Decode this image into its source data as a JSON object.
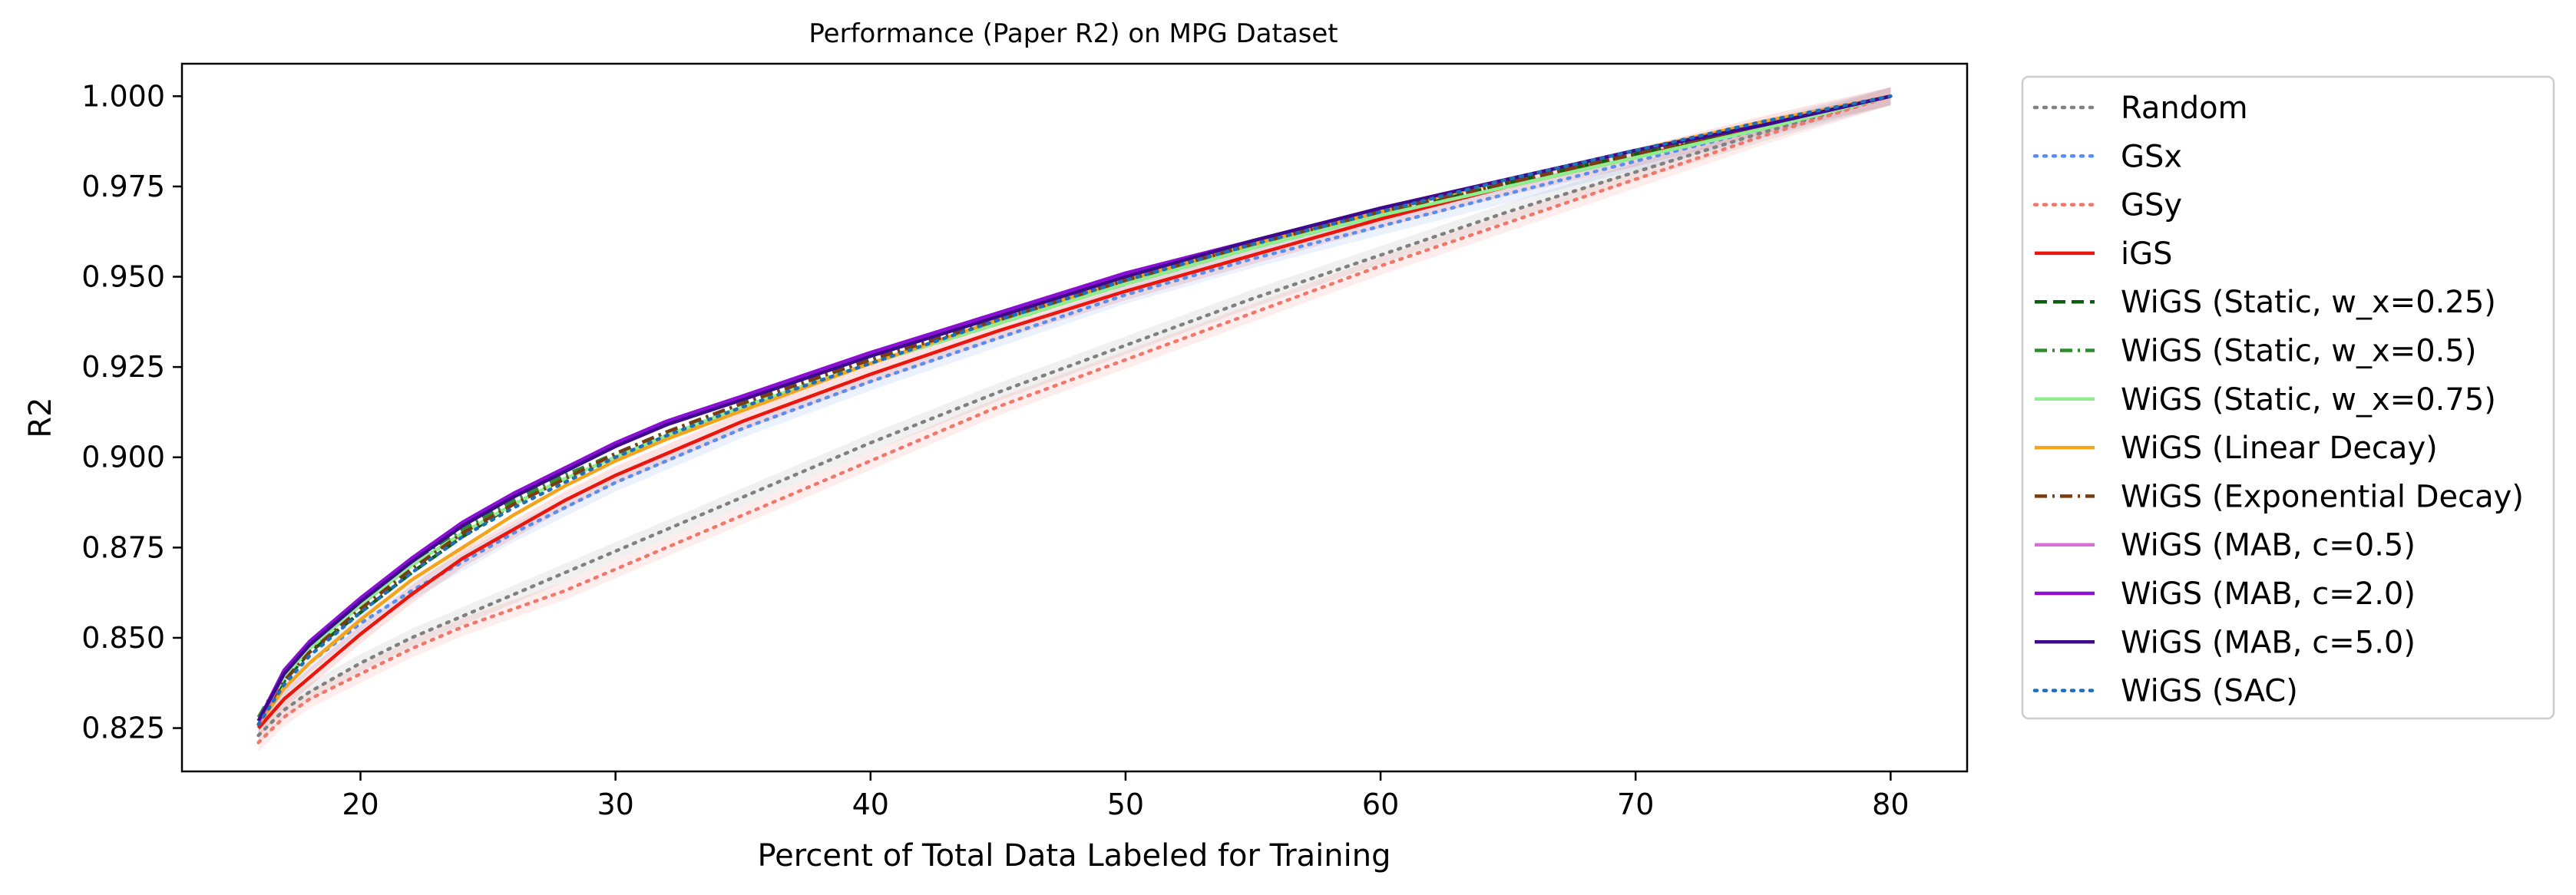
{
  "chart_data": {
    "type": "line",
    "title": "Performance (Paper R2) on MPG Dataset",
    "xlabel": "Percent of Total Data Labeled for Training",
    "ylabel": "R2",
    "xlim": [
      13,
      83
    ],
    "ylim": [
      0.813,
      1.009
    ],
    "xticks": [
      20,
      30,
      40,
      50,
      60,
      70,
      80
    ],
    "yticks": [
      0.825,
      0.85,
      0.875,
      0.9,
      0.925,
      0.95,
      0.975,
      1.0
    ],
    "ytick_labels": [
      "0.825",
      "0.850",
      "0.875",
      "0.900",
      "0.925",
      "0.950",
      "0.975",
      "1.000"
    ],
    "grid": false,
    "legend_position": "outside-right",
    "x": [
      16,
      17,
      18,
      20,
      22,
      24,
      26,
      28,
      30,
      32,
      35,
      40,
      45,
      50,
      55,
      60,
      65,
      70,
      75,
      80
    ],
    "series": [
      {
        "name": "Random",
        "color": "#808080",
        "dash": "dotted",
        "band": true,
        "values": [
          0.823,
          0.83,
          0.835,
          0.843,
          0.85,
          0.856,
          0.862,
          0.868,
          0.874,
          0.88,
          0.889,
          0.904,
          0.918,
          0.931,
          0.944,
          0.956,
          0.968,
          0.979,
          0.99,
          1.0
        ]
      },
      {
        "name": "GSx",
        "color": "#5b8def",
        "dash": "dotted",
        "band": true,
        "values": [
          0.826,
          0.836,
          0.843,
          0.854,
          0.863,
          0.871,
          0.879,
          0.886,
          0.893,
          0.899,
          0.908,
          0.921,
          0.933,
          0.945,
          0.955,
          0.964,
          0.973,
          0.982,
          0.991,
          1.0
        ]
      },
      {
        "name": "GSy",
        "color": "#f2776b",
        "dash": "dotted",
        "band": true,
        "values": [
          0.821,
          0.828,
          0.833,
          0.84,
          0.847,
          0.853,
          0.858,
          0.863,
          0.869,
          0.875,
          0.884,
          0.899,
          0.914,
          0.927,
          0.94,
          0.953,
          0.965,
          0.977,
          0.989,
          1.0
        ]
      },
      {
        "name": "iGS",
        "color": "#e8160c",
        "dash": "solid",
        "band": true,
        "values": [
          0.825,
          0.833,
          0.839,
          0.851,
          0.862,
          0.872,
          0.88,
          0.888,
          0.895,
          0.901,
          0.91,
          0.923,
          0.935,
          0.946,
          0.956,
          0.966,
          0.975,
          0.983,
          0.992,
          1.0
        ]
      },
      {
        "name": "WiGS (Static, w_x=0.25)",
        "color": "#0b5e0b",
        "dash": "dashed",
        "band": false,
        "values": [
          0.827,
          0.838,
          0.846,
          0.857,
          0.868,
          0.878,
          0.887,
          0.894,
          0.9,
          0.906,
          0.914,
          0.926,
          0.937,
          0.948,
          0.958,
          0.967,
          0.976,
          0.984,
          0.992,
          1.0
        ]
      },
      {
        "name": "WiGS (Static, w_x=0.5)",
        "color": "#2e8b2e",
        "dash": "dashdot",
        "band": false,
        "values": [
          0.828,
          0.84,
          0.848,
          0.86,
          0.871,
          0.88,
          0.888,
          0.895,
          0.901,
          0.907,
          0.915,
          0.927,
          0.938,
          0.949,
          0.959,
          0.968,
          0.976,
          0.984,
          0.991,
          1.0
        ]
      },
      {
        "name": "WiGS (Static, w_x=0.75)",
        "color": "#90ee90",
        "dash": "solid",
        "band": false,
        "values": [
          0.827,
          0.839,
          0.847,
          0.859,
          0.87,
          0.879,
          0.887,
          0.894,
          0.9,
          0.906,
          0.914,
          0.926,
          0.937,
          0.948,
          0.958,
          0.967,
          0.975,
          0.983,
          0.991,
          1.0
        ]
      },
      {
        "name": "WiGS (Linear Decay)",
        "color": "#f5a31a",
        "dash": "solid",
        "band": false,
        "values": [
          0.826,
          0.836,
          0.843,
          0.855,
          0.866,
          0.875,
          0.884,
          0.892,
          0.899,
          0.905,
          0.913,
          0.926,
          0.938,
          0.949,
          0.959,
          0.968,
          0.977,
          0.985,
          0.993,
          1.0
        ]
      },
      {
        "name": "WiGS (Exponential Decay)",
        "color": "#7a3d12",
        "dash": "dashdot",
        "band": false,
        "values": [
          0.827,
          0.838,
          0.846,
          0.858,
          0.869,
          0.879,
          0.887,
          0.894,
          0.901,
          0.907,
          0.915,
          0.927,
          0.938,
          0.949,
          0.959,
          0.968,
          0.976,
          0.984,
          0.992,
          1.0
        ]
      },
      {
        "name": "WiGS (MAB, c=0.5)",
        "color": "#da70d6",
        "dash": "solid",
        "band": false,
        "values": [
          0.826,
          0.84,
          0.849,
          0.861,
          0.872,
          0.882,
          0.89,
          0.897,
          0.903,
          0.909,
          0.917,
          0.929,
          0.94,
          0.951,
          0.96,
          0.969,
          0.977,
          0.985,
          0.992,
          1.0
        ]
      },
      {
        "name": "WiGS (MAB, c=2.0)",
        "color": "#8b0ed6",
        "dash": "solid",
        "band": false,
        "values": [
          0.827,
          0.841,
          0.849,
          0.861,
          0.872,
          0.882,
          0.89,
          0.897,
          0.904,
          0.91,
          0.917,
          0.929,
          0.94,
          0.951,
          0.96,
          0.969,
          0.977,
          0.985,
          0.992,
          1.0
        ]
      },
      {
        "name": "WiGS (MAB, c=5.0)",
        "color": "#3d0b8a",
        "dash": "solid",
        "band": false,
        "values": [
          0.827,
          0.84,
          0.848,
          0.86,
          0.871,
          0.881,
          0.889,
          0.896,
          0.903,
          0.909,
          0.916,
          0.928,
          0.939,
          0.95,
          0.96,
          0.969,
          0.977,
          0.985,
          0.992,
          1.0
        ]
      },
      {
        "name": "WiGS (SAC)",
        "color": "#1f6fb8",
        "dash": "dotted",
        "band": false,
        "values": [
          0.826,
          0.837,
          0.845,
          0.857,
          0.868,
          0.878,
          0.886,
          0.893,
          0.9,
          0.906,
          0.914,
          0.926,
          0.938,
          0.949,
          0.959,
          0.968,
          0.977,
          0.985,
          0.993,
          1.0
        ]
      }
    ]
  }
}
